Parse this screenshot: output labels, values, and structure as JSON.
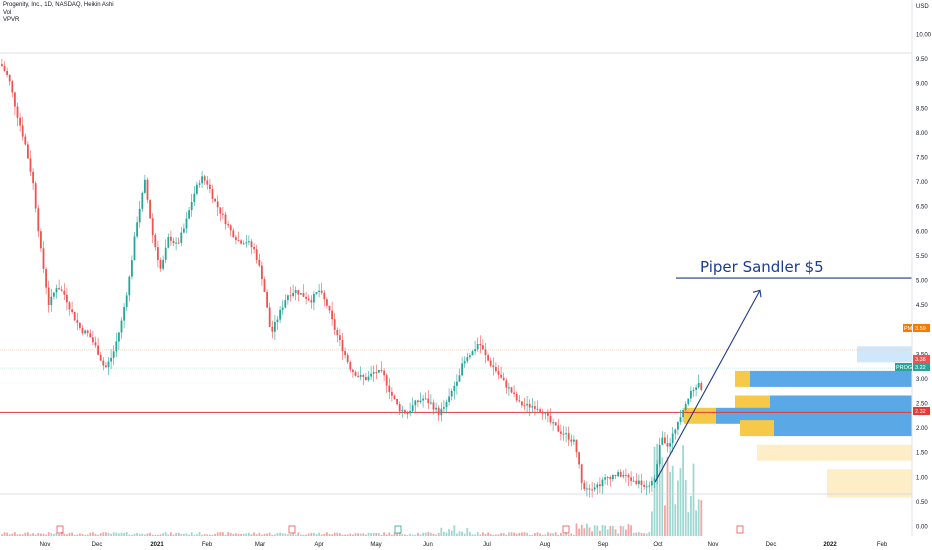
{
  "legend": {
    "symbol_line": "Progenity, Inc., 1D, NASDAQ, Heikin Ashi",
    "volume_label": "Vol",
    "vpvr_label": "VPVR"
  },
  "currency": "USD",
  "colors": {
    "up": "#26a69a",
    "down": "#ef5350",
    "vol_up": "#9fd8d2",
    "vol_down": "#f3a6a4",
    "trend_line": "#1e3a8a",
    "support_line": "#e53935",
    "vp_up_blue": "#5aa9e6",
    "vp_down_yellow": "#f7c948",
    "vp_light_blue": "#cfe7fa",
    "vp_light_yellow": "#fdeec8"
  },
  "annotation": {
    "text": "Piper Sandler $5",
    "level": 5.05
  },
  "price_tags": {
    "pm": {
      "badge": "PM",
      "value": "3.59"
    },
    "prev": {
      "value": "3.38"
    },
    "prog": {
      "badge": "PROG",
      "value": "3.22"
    },
    "support": {
      "value": "2.32"
    }
  },
  "chart_data": {
    "type": "candlestick",
    "title": "Progenity, Inc., 1D, NASDAQ, Heikin Ashi",
    "y_axis": {
      "unit": "USD",
      "range": [
        -0.1,
        10.3
      ],
      "ticks": [
        0.0,
        0.5,
        1.0,
        1.5,
        2.0,
        2.5,
        3.0,
        3.5,
        4.0,
        4.5,
        5.0,
        5.5,
        6.0,
        6.5,
        7.0,
        7.5,
        8.0,
        8.5,
        9.0,
        9.5,
        10.0
      ]
    },
    "x_axis": {
      "ticks": [
        "Nov",
        "Dec",
        "2021",
        "Feb",
        "Mar",
        "Apr",
        "May",
        "Jun",
        "Jul",
        "Aug",
        "Sep",
        "Oct",
        "Nov",
        "Dec",
        "2022",
        "Feb"
      ]
    },
    "price_path": [
      [
        0,
        9.4
      ],
      [
        8,
        9.1
      ],
      [
        16,
        8.4
      ],
      [
        24,
        7.8
      ],
      [
        32,
        7.0
      ],
      [
        40,
        5.6
      ],
      [
        48,
        4.5
      ],
      [
        56,
        4.9
      ],
      [
        64,
        4.7
      ],
      [
        72,
        4.3
      ],
      [
        80,
        4.0
      ],
      [
        88,
        3.9
      ],
      [
        96,
        3.6
      ],
      [
        104,
        3.2
      ],
      [
        112,
        3.5
      ],
      [
        120,
        4.1
      ],
      [
        128,
        5.0
      ],
      [
        136,
        6.2
      ],
      [
        144,
        7.0
      ],
      [
        152,
        5.9
      ],
      [
        160,
        5.2
      ],
      [
        168,
        5.9
      ],
      [
        176,
        5.7
      ],
      [
        184,
        6.1
      ],
      [
        192,
        6.7
      ],
      [
        200,
        7.1
      ],
      [
        206,
        7.0
      ],
      [
        214,
        6.6
      ],
      [
        222,
        6.3
      ],
      [
        230,
        6.0
      ],
      [
        238,
        5.8
      ],
      [
        246,
        5.8
      ],
      [
        254,
        5.6
      ],
      [
        262,
        5.0
      ],
      [
        270,
        3.9
      ],
      [
        278,
        4.3
      ],
      [
        286,
        4.7
      ],
      [
        294,
        4.8
      ],
      [
        302,
        4.7
      ],
      [
        310,
        4.6
      ],
      [
        318,
        4.8
      ],
      [
        326,
        4.5
      ],
      [
        334,
        4.0
      ],
      [
        342,
        3.6
      ],
      [
        350,
        3.2
      ],
      [
        358,
        3.05
      ],
      [
        366,
        3.0
      ],
      [
        374,
        3.15
      ],
      [
        382,
        3.1
      ],
      [
        390,
        2.7
      ],
      [
        398,
        2.4
      ],
      [
        406,
        2.3
      ],
      [
        414,
        2.5
      ],
      [
        422,
        2.6
      ],
      [
        430,
        2.5
      ],
      [
        438,
        2.3
      ],
      [
        446,
        2.5
      ],
      [
        454,
        2.9
      ],
      [
        462,
        3.3
      ],
      [
        470,
        3.5
      ],
      [
        478,
        3.75
      ],
      [
        486,
        3.4
      ],
      [
        494,
        3.2
      ],
      [
        502,
        2.95
      ],
      [
        510,
        2.75
      ],
      [
        518,
        2.5
      ],
      [
        526,
        2.45
      ],
      [
        534,
        2.45
      ],
      [
        542,
        2.35
      ],
      [
        550,
        2.1
      ],
      [
        558,
        1.95
      ],
      [
        566,
        1.85
      ],
      [
        574,
        1.7
      ],
      [
        582,
        0.8
      ],
      [
        590,
        0.8
      ],
      [
        598,
        0.85
      ],
      [
        606,
        1.0
      ],
      [
        614,
        1.05
      ],
      [
        622,
        1.05
      ],
      [
        630,
        0.95
      ],
      [
        638,
        0.9
      ],
      [
        646,
        0.85
      ],
      [
        654,
        0.95
      ],
      [
        660,
        1.9
      ],
      [
        668,
        1.6
      ],
      [
        676,
        2.1
      ],
      [
        684,
        2.5
      ],
      [
        690,
        2.7
      ],
      [
        696,
        2.9
      ],
      [
        702,
        2.8
      ]
    ],
    "volume_profile": [
      {
        "price": 3.5,
        "up": 0,
        "down": 0,
        "light": 55
      },
      {
        "price": 3.0,
        "up": 162,
        "down": 15,
        "light": 0
      },
      {
        "price": 2.5,
        "up": 142,
        "down": 35,
        "light": 0
      },
      {
        "price": 2.25,
        "up": 196,
        "down": 32,
        "light": 0
      },
      {
        "price": 2.0,
        "up": 138,
        "down": 34,
        "light": 0
      },
      {
        "price": 1.5,
        "up": 0,
        "down": 0,
        "light": 155
      },
      {
        "price": 1.0,
        "up": 0,
        "down": 0,
        "light": 85
      },
      {
        "price": 0.75,
        "up": 0,
        "down": 0,
        "light": 85
      }
    ],
    "lines": [
      {
        "name": "support",
        "value": 2.32
      },
      {
        "name": "target",
        "value": 5.05
      },
      {
        "name": "pre-market",
        "value": 3.59
      }
    ]
  }
}
